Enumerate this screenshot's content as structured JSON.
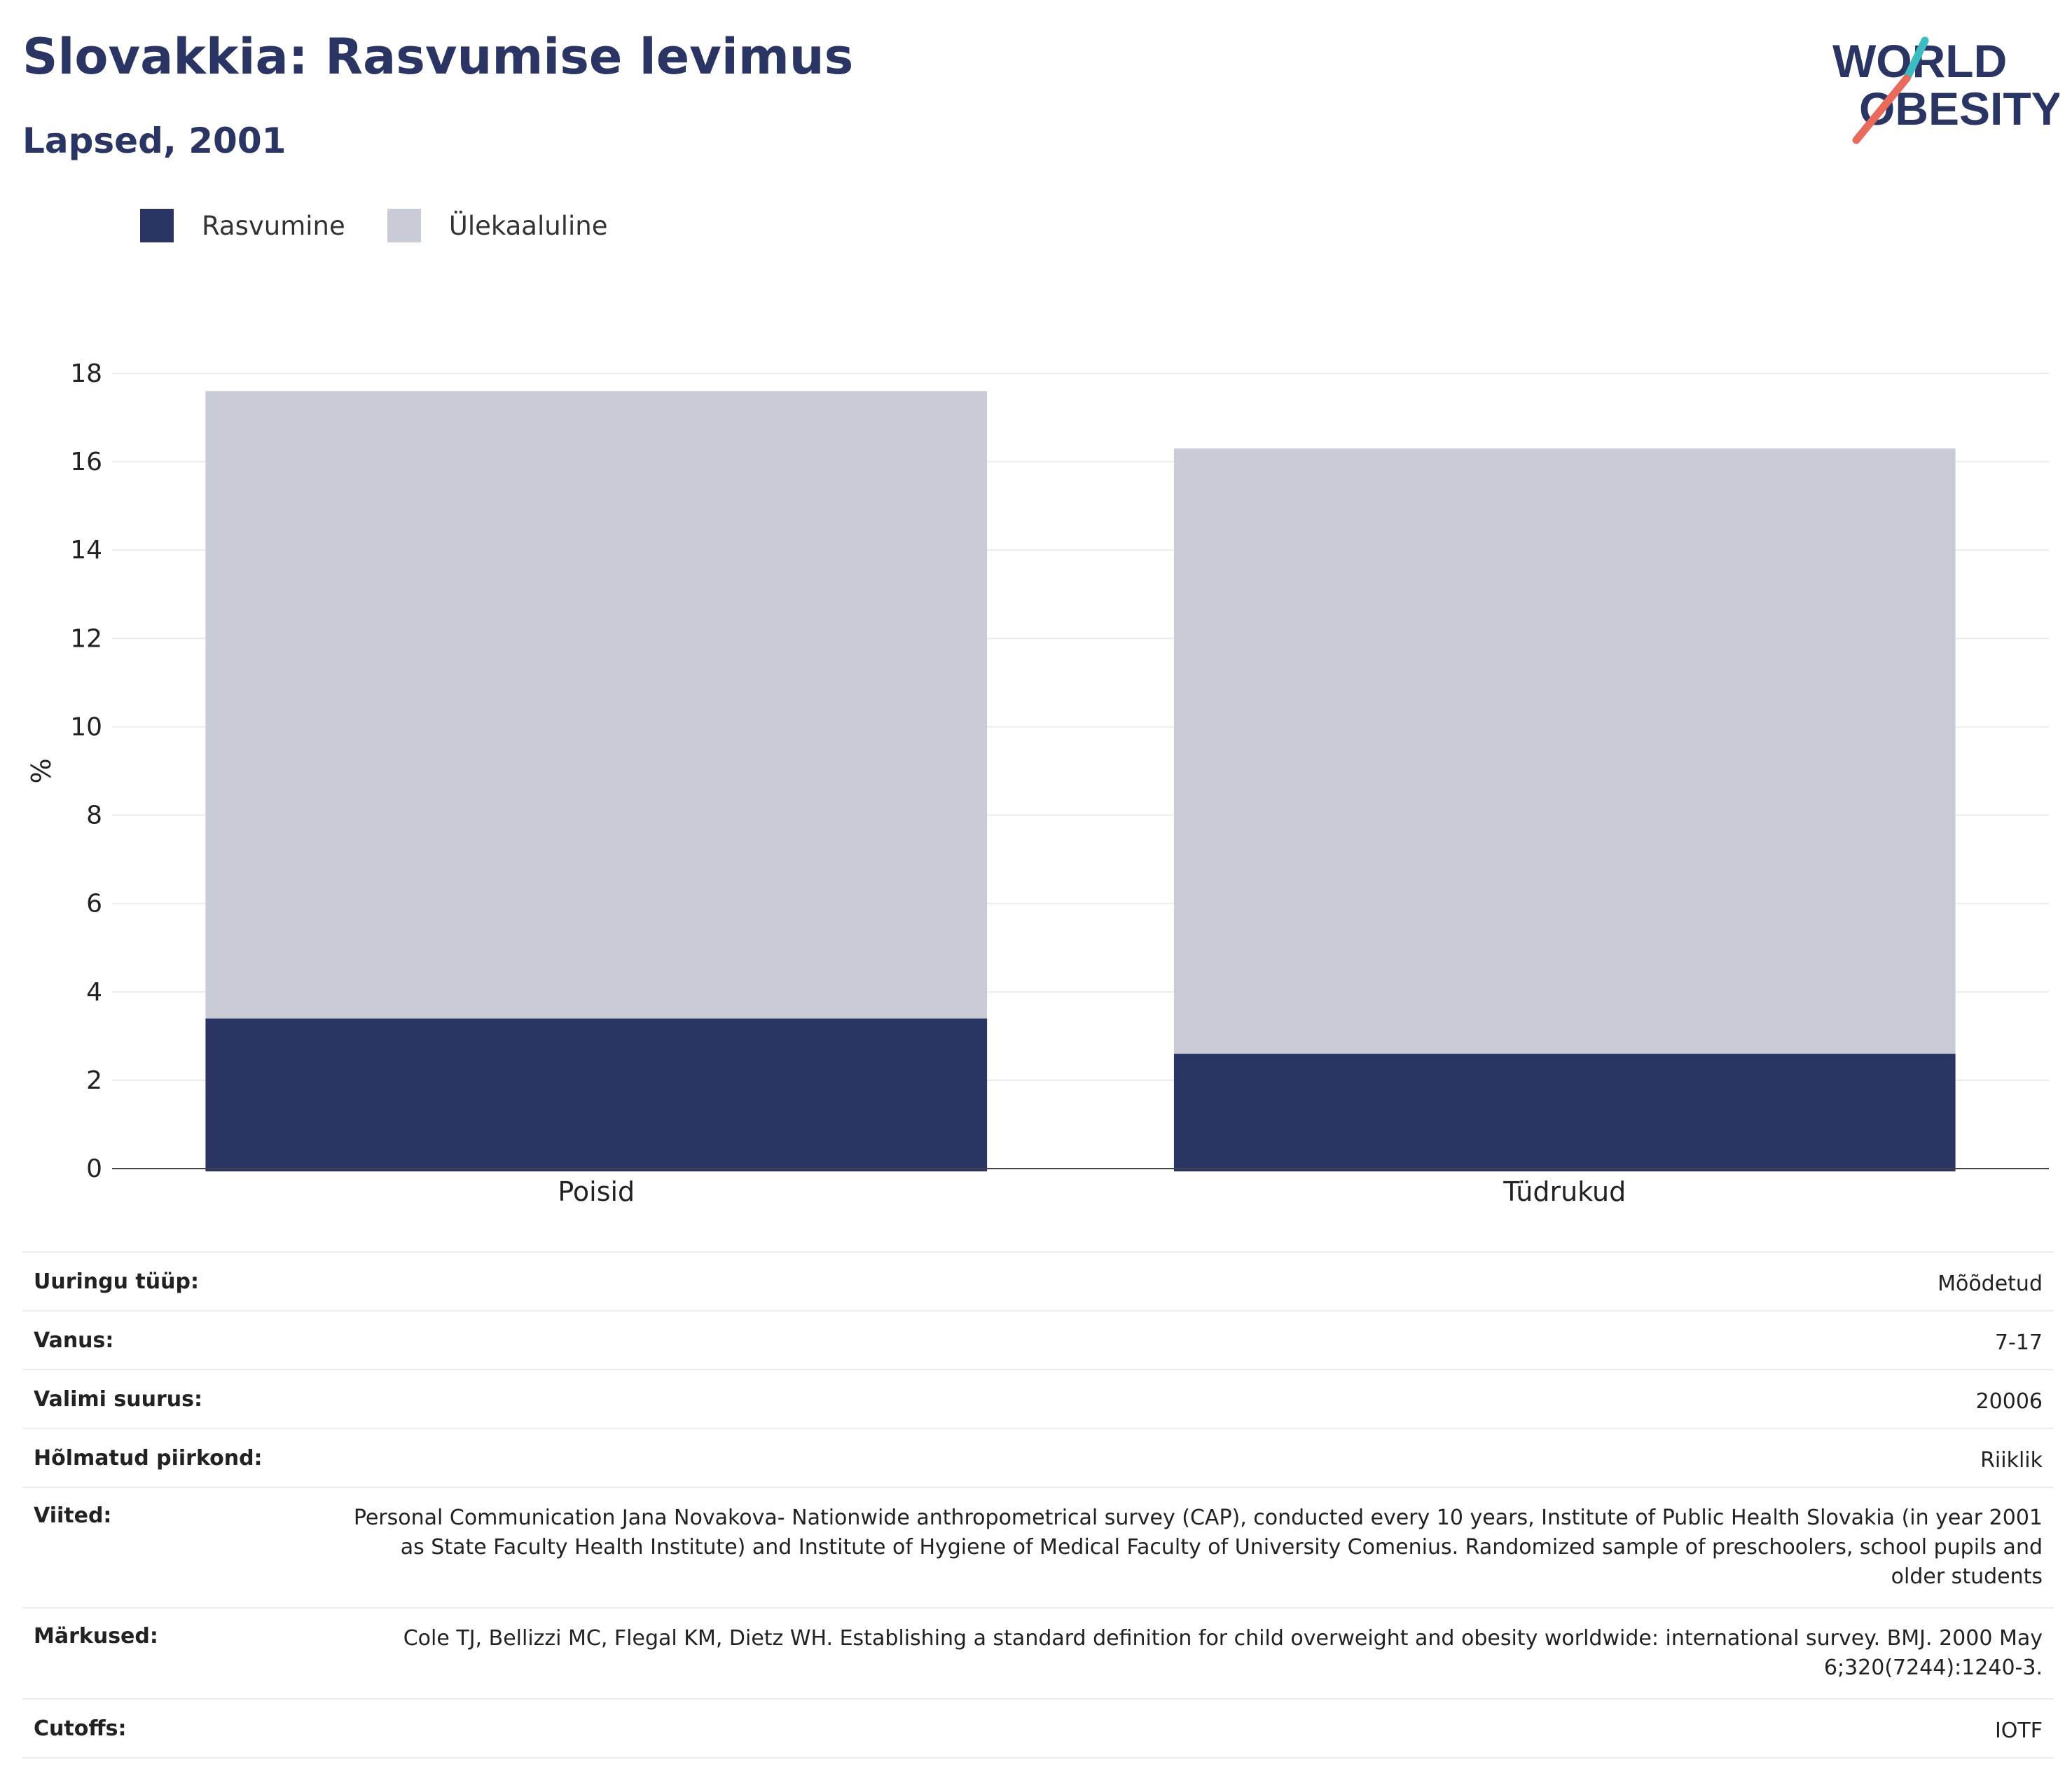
{
  "header": {
    "title": "Slovakkia: Rasvumise levimus",
    "subtitle": "Lapsed, 2001",
    "logo_text_line1": "WORLD",
    "logo_text_line2": "OBESITY"
  },
  "colors": {
    "title": "#2a3564",
    "obesity": "#2a3564",
    "overweight": "#c9cbd7",
    "logo_teal": "#3cbcc0",
    "logo_coral": "#ea6a5b"
  },
  "chart_data": {
    "type": "bar",
    "stacked": true,
    "categories": [
      "Poisid",
      "Tüdrukud"
    ],
    "series": [
      {
        "name": "Rasvumine",
        "values": [
          3.4,
          2.6
        ],
        "color": "#2a3564"
      },
      {
        "name": "Ülekaaluline",
        "values": [
          14.2,
          13.7
        ],
        "color": "#c9cbd7"
      }
    ],
    "ylabel": "%",
    "ylim": [
      0,
      18
    ],
    "yticks": [
      0,
      2,
      4,
      6,
      8,
      10,
      12,
      14,
      16,
      18
    ],
    "grid": true,
    "legend_position": "top-left"
  },
  "info": {
    "rows": [
      {
        "key": "Uuringu tüüp:",
        "value": "Mõõdetud"
      },
      {
        "key": "Vanus:",
        "value": "7-17"
      },
      {
        "key": "Valimi suurus:",
        "value": "20006"
      },
      {
        "key": "Hõlmatud piirkond:",
        "value": "Riiklik"
      },
      {
        "key": "Viited:",
        "value": "Personal Communication Jana Novakova- Nationwide anthropometrical survey (CAP), conducted every 10 years, Institute of Public Health Slovakia (in year 2001 as State Faculty Health Institute) and Institute of Hygiene of Medical Faculty of University Comenius. Randomized sample of preschoolers, school pupils and older students"
      },
      {
        "key": "Märkused:",
        "value": "Cole TJ, Bellizzi MC, Flegal KM, Dietz WH. Establishing a standard definition for child overweight and obesity worldwide: international survey. BMJ. 2000 May 6;320(7244):1240-3."
      },
      {
        "key": "Cutoffs:",
        "value": "IOTF"
      }
    ]
  }
}
